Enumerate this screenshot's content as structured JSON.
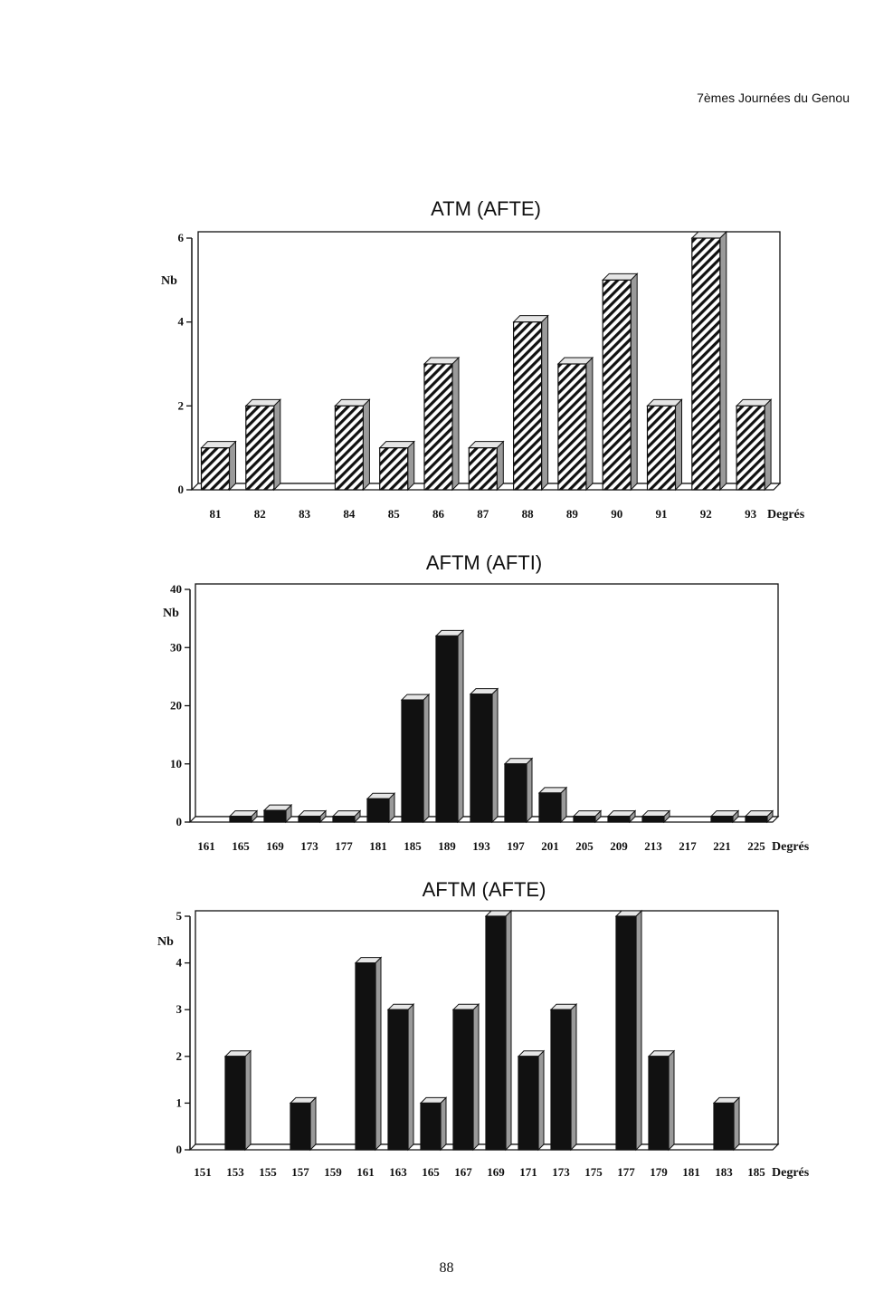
{
  "page": {
    "header": "7èmes Journées du Genou",
    "page_number": "88"
  },
  "colors": {
    "frame": "#111111",
    "bar_front_dark": "#111111",
    "bar_side": "#9a9a9a",
    "bar_top": "#e6e6e6",
    "hatch_bg": "#ffffff"
  },
  "chart_data": [
    {
      "type": "bar",
      "title": "ATM (AFTE)",
      "ylabel": "Nb",
      "xlabel": "Degrés",
      "ylim": [
        0,
        6
      ],
      "yticks": [
        0,
        2,
        4,
        6
      ],
      "categories": [
        "81",
        "82",
        "83",
        "84",
        "85",
        "86",
        "87",
        "88",
        "89",
        "90",
        "91",
        "92",
        "93"
      ],
      "values": [
        1,
        2,
        0,
        2,
        1,
        3,
        1,
        4,
        3,
        5,
        2,
        6,
        2
      ],
      "fill": "hatched"
    },
    {
      "type": "bar",
      "title": "AFTM (AFTI)",
      "ylabel": "Nb",
      "xlabel": "Degrés",
      "ylim": [
        0,
        40
      ],
      "yticks": [
        0,
        10,
        20,
        30,
        40
      ],
      "categories": [
        "161",
        "165",
        "169",
        "173",
        "177",
        "181",
        "185",
        "189",
        "193",
        "197",
        "201",
        "205",
        "209",
        "213",
        "217",
        "221",
        "225"
      ],
      "values": [
        0,
        1,
        2,
        1,
        1,
        4,
        21,
        32,
        22,
        10,
        5,
        1,
        1,
        1,
        0,
        1,
        1
      ],
      "fill": "solid"
    },
    {
      "type": "bar",
      "title": "AFTM (AFTE)",
      "ylabel": "Nb",
      "xlabel": "Degrés",
      "ylim": [
        0,
        5
      ],
      "yticks": [
        0,
        1,
        2,
        3,
        4,
        5
      ],
      "categories": [
        "151",
        "153",
        "155",
        "157",
        "159",
        "161",
        "163",
        "165",
        "167",
        "169",
        "171",
        "173",
        "175",
        "177",
        "179",
        "181",
        "183",
        "185"
      ],
      "values": [
        0,
        2,
        0,
        1,
        0,
        4,
        3,
        1,
        3,
        5,
        2,
        3,
        0,
        5,
        2,
        0,
        1,
        0
      ],
      "fill": "solid"
    }
  ]
}
